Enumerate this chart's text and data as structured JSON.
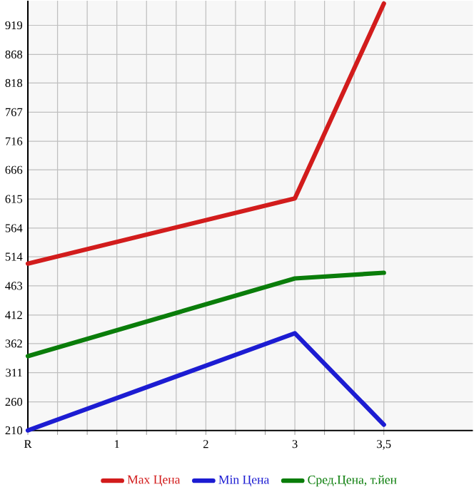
{
  "chart_data": {
    "type": "line",
    "categories": [
      "R",
      "1",
      "2",
      "3",
      "3,5"
    ],
    "series": [
      {
        "name": "Max Цена",
        "color": "#d21c1c",
        "values": [
          502,
          null,
          null,
          616,
          957
        ]
      },
      {
        "name": "Min Цена",
        "color": "#1c1cd2",
        "values": [
          210,
          null,
          null,
          380,
          220
        ]
      },
      {
        "name": "Сред.Цена, т.йен",
        "color": "#0a7d0a",
        "values": [
          340,
          null,
          null,
          476,
          486
        ]
      }
    ],
    "ylim": [
      210,
      962
    ],
    "yticks": [
      210,
      260,
      311,
      362,
      412,
      463,
      514,
      564,
      615,
      666,
      716,
      767,
      818,
      868,
      919
    ],
    "grid": true,
    "legend": "bottom",
    "marker": "none",
    "line_style": "solid"
  }
}
